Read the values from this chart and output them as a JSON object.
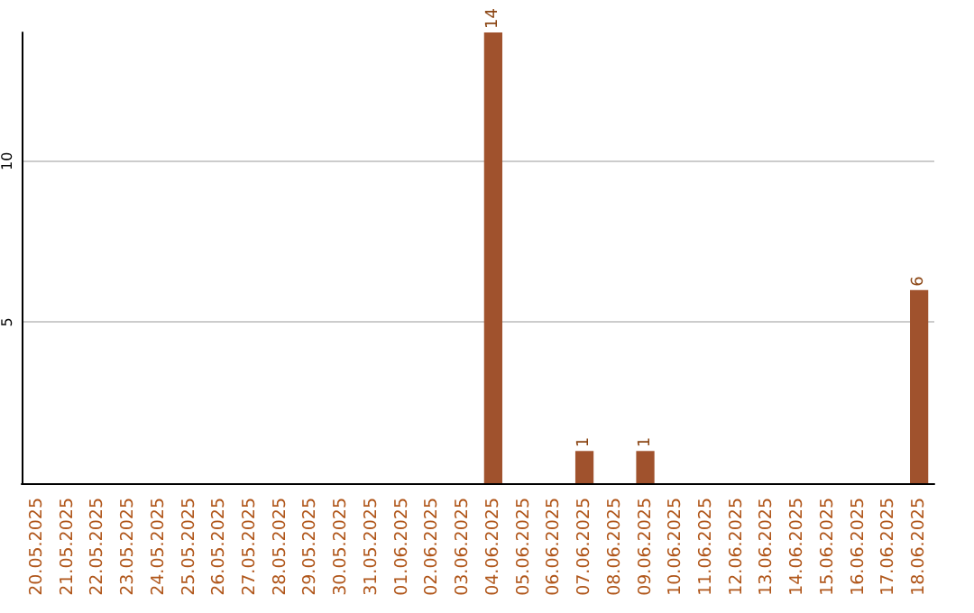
{
  "chart_data": {
    "type": "bar",
    "categories": [
      "20.05.2025",
      "21.05.2025",
      "22.05.2025",
      "23.05.2025",
      "24.05.2025",
      "25.05.2025",
      "26.05.2025",
      "27.05.2025",
      "28.05.2025",
      "29.05.2025",
      "30.05.2025",
      "31.05.2025",
      "01.06.2025",
      "02.06.2025",
      "03.06.2025",
      "04.06.2025",
      "05.06.2025",
      "06.06.2025",
      "07.06.2025",
      "08.06.2025",
      "09.06.2025",
      "10.06.2025",
      "11.06.2025",
      "12.06.2025",
      "13.06.2025",
      "14.06.2025",
      "15.06.2025",
      "16.06.2025",
      "17.06.2025",
      "18.06.2025"
    ],
    "values": [
      0,
      0,
      0,
      0,
      0,
      0,
      0,
      0,
      0,
      0,
      0,
      0,
      0,
      0,
      0,
      14,
      0,
      0,
      1,
      0,
      1,
      0,
      0,
      0,
      0,
      0,
      0,
      0,
      0,
      6
    ],
    "value_labels": [
      null,
      null,
      null,
      null,
      null,
      null,
      null,
      null,
      null,
      null,
      null,
      null,
      null,
      null,
      null,
      "14",
      null,
      null,
      "1",
      null,
      "1",
      null,
      null,
      null,
      null,
      null,
      null,
      null,
      null,
      "6"
    ],
    "color": "#a0522d",
    "ylim": [
      0,
      14
    ],
    "yticks": [
      5,
      10
    ],
    "grid": "y"
  }
}
